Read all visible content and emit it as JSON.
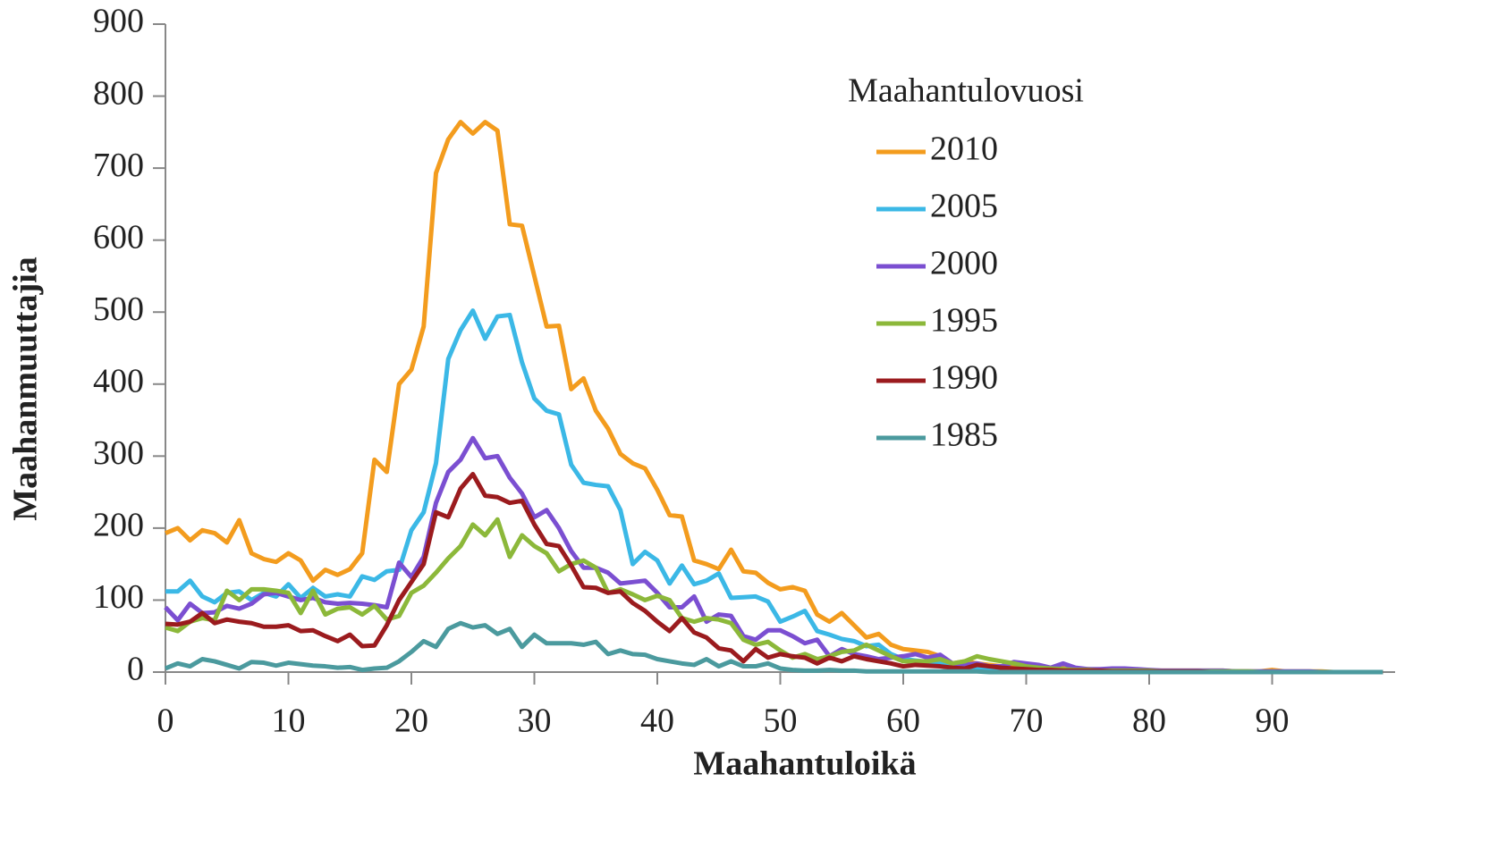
{
  "chart_data": {
    "type": "line",
    "x_label": "Maahantuloikä",
    "y_label": "Maahanmuuttajia",
    "legend_title": "Maahantulovuosi",
    "legend_position": "upper right",
    "xlim": [
      0,
      100
    ],
    "xticks": [
      0,
      10,
      20,
      30,
      40,
      50,
      60,
      70,
      80,
      90
    ],
    "ylim": [
      0,
      900
    ],
    "yticks": [
      0,
      100,
      200,
      300,
      400,
      500,
      600,
      700,
      800,
      900
    ],
    "grid": false,
    "x": [
      0,
      1,
      2,
      3,
      4,
      5,
      6,
      7,
      8,
      9,
      10,
      11,
      12,
      13,
      14,
      15,
      16,
      17,
      18,
      19,
      20,
      21,
      22,
      23,
      24,
      25,
      26,
      27,
      28,
      29,
      30,
      31,
      32,
      33,
      34,
      35,
      36,
      37,
      38,
      39,
      40,
      41,
      42,
      43,
      44,
      45,
      46,
      47,
      48,
      49,
      50,
      51,
      52,
      53,
      54,
      55,
      56,
      57,
      58,
      59,
      60,
      61,
      62,
      63,
      64,
      65,
      66,
      67,
      68,
      69,
      70,
      71,
      72,
      73,
      74,
      75,
      76,
      77,
      78,
      79,
      80,
      81,
      82,
      83,
      84,
      85,
      86,
      87,
      88,
      89,
      90,
      91,
      92,
      93,
      94,
      95,
      96,
      97,
      98,
      99
    ],
    "series": [
      {
        "name": "2010",
        "color": "#f39c1e",
        "values": [
          193,
          200,
          183,
          197,
          193,
          180,
          211,
          165,
          157,
          153,
          165,
          155,
          127,
          142,
          135,
          143,
          165,
          295,
          278,
          400,
          420,
          480,
          693,
          740,
          764,
          748,
          764,
          752,
          622,
          620,
          550,
          480,
          481,
          393,
          408,
          363,
          338,
          303,
          290,
          283,
          253,
          218,
          216,
          155,
          150,
          143,
          170,
          140,
          138,
          124,
          115,
          118,
          113,
          80,
          70,
          82,
          65,
          48,
          53,
          38,
          32,
          30,
          28,
          22,
          12,
          15,
          12,
          10,
          8,
          8,
          6,
          7,
          5,
          5,
          4,
          4,
          3,
          3,
          3,
          2,
          2,
          2,
          2,
          2,
          2,
          2,
          2,
          1,
          1,
          1,
          3,
          1,
          1,
          1,
          1,
          0,
          0,
          0,
          0,
          0
        ]
      },
      {
        "name": "2005",
        "color": "#3bb8e6",
        "values": [
          112,
          112,
          127,
          105,
          97,
          110,
          112,
          100,
          110,
          105,
          122,
          103,
          117,
          105,
          108,
          105,
          133,
          128,
          140,
          142,
          197,
          222,
          290,
          435,
          475,
          502,
          463,
          494,
          496,
          430,
          380,
          363,
          358,
          288,
          263,
          260,
          258,
          225,
          150,
          167,
          155,
          123,
          148,
          122,
          127,
          137,
          103,
          104,
          105,
          98,
          70,
          77,
          85,
          57,
          52,
          46,
          43,
          36,
          38,
          25,
          18,
          16,
          14,
          12,
          8,
          8,
          6,
          5,
          5,
          4,
          3,
          3,
          3,
          2,
          2,
          2,
          2,
          2,
          1,
          1,
          1,
          1,
          1,
          1,
          1,
          1,
          1,
          1,
          0,
          0,
          0,
          0,
          0,
          0,
          0,
          0,
          0,
          0,
          0,
          0
        ]
      },
      {
        "name": "2000",
        "color": "#7b4fd1",
        "values": [
          90,
          72,
          95,
          82,
          83,
          92,
          88,
          95,
          108,
          110,
          105,
          100,
          103,
          97,
          95,
          96,
          95,
          93,
          90,
          152,
          132,
          160,
          235,
          278,
          295,
          325,
          297,
          300,
          270,
          248,
          215,
          225,
          200,
          168,
          145,
          145,
          138,
          123,
          125,
          127,
          110,
          90,
          90,
          105,
          70,
          80,
          78,
          50,
          45,
          58,
          58,
          50,
          40,
          45,
          22,
          32,
          25,
          22,
          18,
          20,
          22,
          25,
          20,
          24,
          12,
          10,
          12,
          8,
          8,
          14,
          12,
          10,
          6,
          12,
          6,
          4,
          4,
          5,
          5,
          4,
          3,
          2,
          2,
          2,
          2,
          2,
          2,
          1,
          1,
          1,
          1,
          1,
          1,
          1,
          0,
          0,
          0,
          0,
          0,
          0
        ]
      },
      {
        "name": "1995",
        "color": "#8cb83a",
        "values": [
          62,
          57,
          70,
          75,
          72,
          113,
          100,
          115,
          115,
          113,
          110,
          82,
          113,
          80,
          88,
          90,
          80,
          92,
          73,
          78,
          110,
          120,
          138,
          158,
          175,
          205,
          190,
          212,
          160,
          190,
          175,
          165,
          140,
          150,
          155,
          145,
          110,
          115,
          108,
          100,
          106,
          100,
          75,
          70,
          75,
          73,
          68,
          45,
          38,
          42,
          30,
          20,
          25,
          18,
          22,
          28,
          30,
          38,
          30,
          22,
          15,
          15,
          15,
          18,
          12,
          15,
          22,
          18,
          15,
          12,
          8,
          6,
          5,
          4,
          3,
          3,
          2,
          2,
          2,
          2,
          2,
          1,
          1,
          1,
          1,
          1,
          1,
          1,
          1,
          0,
          0,
          0,
          0,
          0,
          0,
          0,
          0,
          0,
          0,
          0
        ]
      },
      {
        "name": "1990",
        "color": "#9b1b1e",
        "values": [
          67,
          66,
          70,
          82,
          68,
          73,
          70,
          68,
          63,
          63,
          65,
          57,
          58,
          50,
          43,
          52,
          36,
          37,
          65,
          100,
          125,
          150,
          222,
          215,
          255,
          275,
          245,
          243,
          235,
          238,
          205,
          178,
          175,
          148,
          118,
          117,
          110,
          112,
          96,
          85,
          70,
          57,
          75,
          55,
          48,
          33,
          30,
          15,
          32,
          20,
          25,
          22,
          20,
          12,
          20,
          15,
          22,
          18,
          15,
          12,
          8,
          10,
          9,
          8,
          6,
          5,
          10,
          8,
          6,
          5,
          4,
          3,
          3,
          2,
          2,
          2,
          2,
          1,
          1,
          1,
          1,
          1,
          1,
          1,
          1,
          0,
          0,
          0,
          0,
          0,
          0,
          0,
          0,
          0,
          0,
          0,
          0,
          0,
          0,
          0
        ]
      },
      {
        "name": "1985",
        "color": "#4b9a9e",
        "values": [
          5,
          12,
          8,
          18,
          15,
          10,
          5,
          14,
          13,
          9,
          13,
          11,
          9,
          8,
          6,
          7,
          3,
          5,
          6,
          15,
          28,
          43,
          35,
          60,
          68,
          62,
          65,
          53,
          60,
          35,
          52,
          40,
          40,
          40,
          38,
          42,
          25,
          30,
          25,
          24,
          18,
          15,
          12,
          10,
          18,
          8,
          15,
          8,
          8,
          12,
          5,
          3,
          2,
          2,
          3,
          2,
          2,
          1,
          1,
          1,
          1,
          1,
          1,
          1,
          1,
          1,
          1,
          0,
          0,
          0,
          0,
          0,
          0,
          0,
          0,
          0,
          0,
          0,
          0,
          0,
          0,
          0,
          0,
          0,
          0,
          0,
          0,
          0,
          0,
          0,
          0,
          0,
          0,
          0,
          0,
          0,
          0,
          0,
          0,
          0
        ]
      }
    ]
  }
}
